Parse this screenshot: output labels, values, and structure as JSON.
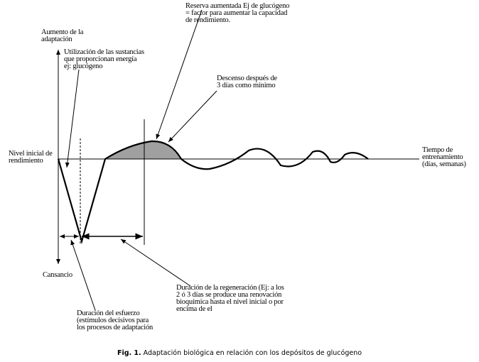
{
  "labels": {
    "y_axis_top": "Aumento de la\nadaptación",
    "y_axis_bottom": "Cansancio",
    "baseline": "Nivel inicial de\nrendimiento",
    "x_axis": "Tiempo de\nentrenamiento\n(días, semanas)",
    "utilization": "Utilización de las sustancias\nque proporcionan energía\nej: glucógeno",
    "reserve": "Reserva aumentada Ej de glucógeno\n= factor para aumentar la capacidad\nde rendimiento.",
    "decline": "Descenso después de\n3 días como mínimo",
    "effort_duration": "Duración del esfuerzo\n(estímulos decisivos para\nlos procesos de adaptación",
    "regeneration_duration": "Duración de la regeneración (Ej: a los\n2 ó 3 días se produce una renovación\nbioquímica hasta el nivel inicial o por\nencima de el"
  },
  "caption": {
    "prefix": "Fig. 1.",
    "text": " Adaptación biológica en relación con los depósitos de glucógeno"
  },
  "colors": {
    "line": "#000000",
    "shade": "#a0a0a0"
  }
}
